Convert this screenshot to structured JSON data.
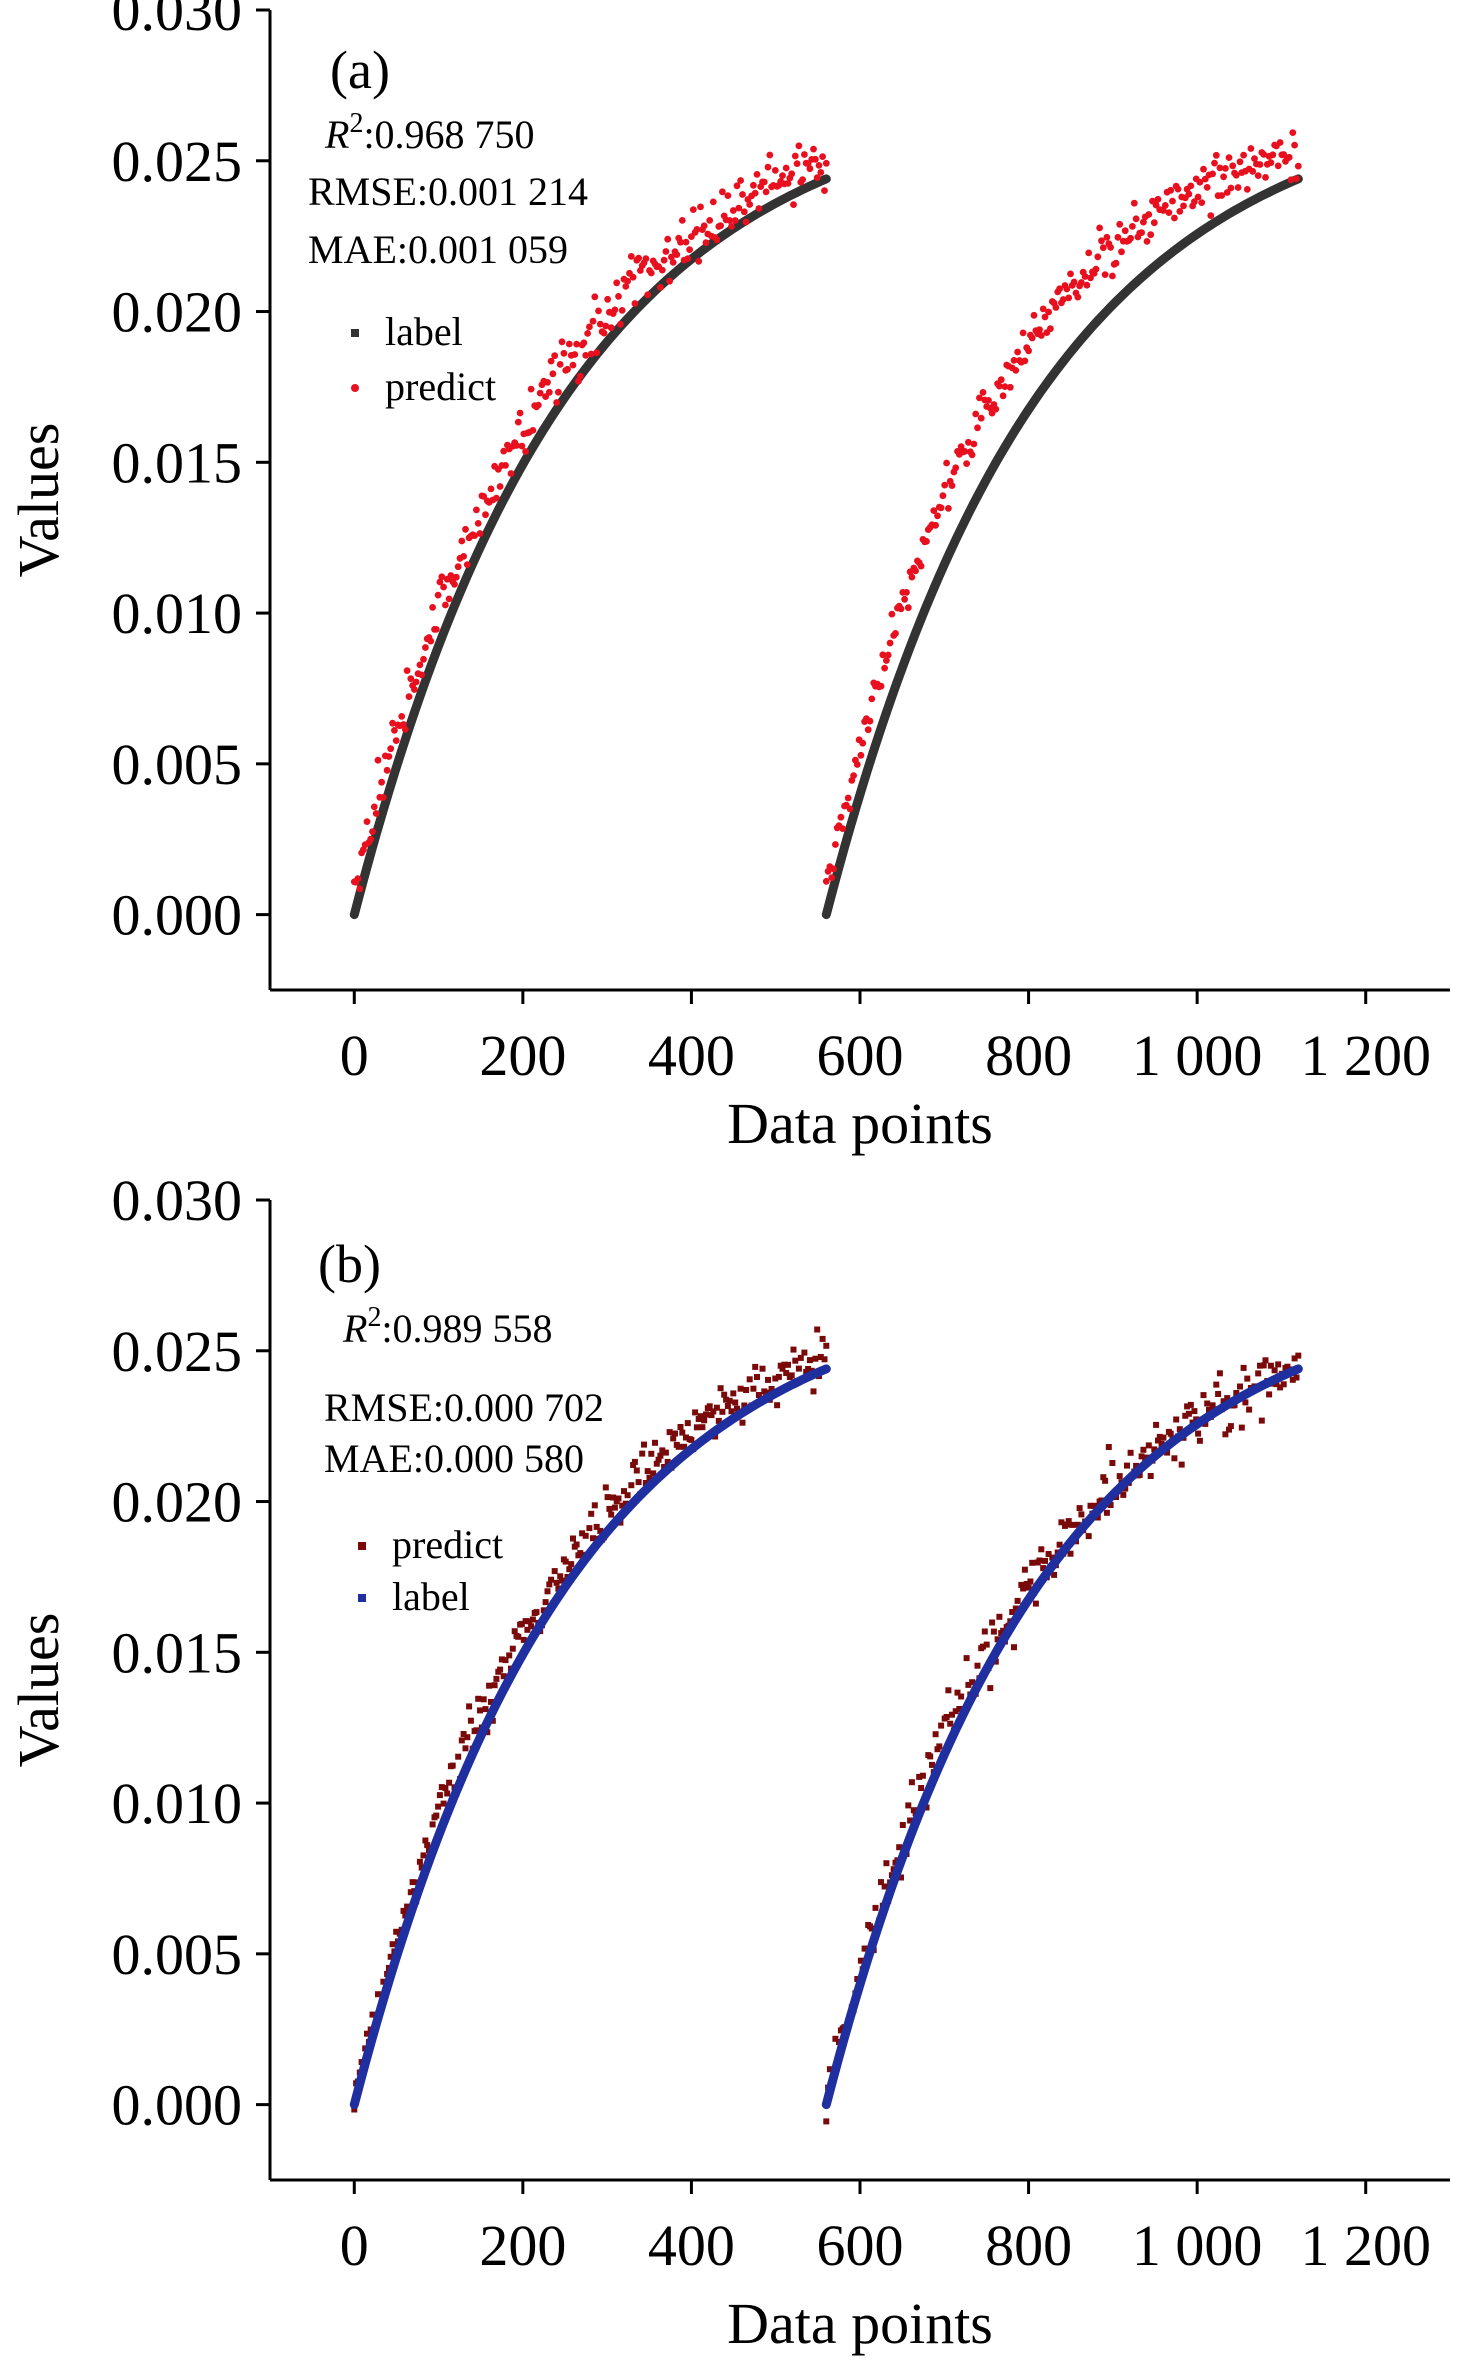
{
  "chart_data": [
    {
      "type": "scatter",
      "panel_label": "(a)",
      "xlabel": "Data points",
      "ylabel": "Values",
      "xlim": [
        -100,
        1300
      ],
      "ylim": [
        -0.0025,
        0.03
      ],
      "xticks": [
        0,
        200,
        400,
        600,
        800,
        1000,
        1200
      ],
      "xtick_labels": [
        "0",
        "200",
        "400",
        "600",
        "800",
        "1 000",
        "1 200"
      ],
      "yticks": [
        0.0,
        0.005,
        0.01,
        0.015,
        0.02,
        0.025,
        0.03
      ],
      "ytick_labels": [
        "0.000",
        "0.005",
        "0.010",
        "0.015",
        "0.020",
        "0.025",
        "0.030"
      ],
      "metrics": [
        {
          "name": "R",
          "sup": "2",
          "value": ":0.968 750"
        },
        {
          "name": "RMSE",
          "value": "RMSE:0.001 214"
        },
        {
          "name": "MAE",
          "value": "MAE:0.001 059"
        }
      ],
      "legend": [
        {
          "label": "label",
          "color": "#333333"
        },
        {
          "label": "predict",
          "color": "#e8101e"
        }
      ],
      "series": [
        {
          "name": "label",
          "kind": "line",
          "color": "#333333",
          "segments": [
            {
              "x_start": 0,
              "x_end": 560,
              "y_start": 0.0,
              "y_end": 0.0244,
              "curvature": 2.2
            },
            {
              "x_start": 560,
              "x_end": 1120,
              "y_start": 0.0,
              "y_end": 0.0244,
              "curvature": 2.2
            }
          ]
        },
        {
          "name": "predict",
          "kind": "scatter",
          "color": "#e8101e",
          "segments": [
            {
              "x_start": 0,
              "x_end": 560,
              "y_start": 0.0008,
              "y_end": 0.025,
              "curvature": 2.4,
              "noise": 0.0005
            },
            {
              "x_start": 560,
              "x_end": 1120,
              "y_start": 0.0008,
              "y_end": 0.0253,
              "curvature": 2.8,
              "noise": 0.0004
            }
          ]
        }
      ]
    },
    {
      "type": "scatter",
      "panel_label": "(b)",
      "xlabel": "Data points",
      "ylabel": "Values",
      "xlim": [
        -100,
        1300
      ],
      "ylim": [
        -0.0025,
        0.03
      ],
      "xticks": [
        0,
        200,
        400,
        600,
        800,
        1000,
        1200
      ],
      "xtick_labels": [
        "0",
        "200",
        "400",
        "600",
        "800",
        "1 000",
        "1 200"
      ],
      "yticks": [
        0.0,
        0.005,
        0.01,
        0.015,
        0.02,
        0.025,
        0.03
      ],
      "ytick_labels": [
        "0.000",
        "0.005",
        "0.010",
        "0.015",
        "0.020",
        "0.025",
        "0.030"
      ],
      "metrics": [
        {
          "name": "R",
          "sup": "2",
          "value": ":0.989 558"
        },
        {
          "name": "RMSE",
          "value": "RMSE:0.000 702"
        },
        {
          "name": "MAE",
          "value": "MAE:0.000 580"
        }
      ],
      "legend": [
        {
          "label": "predict",
          "color": "#7a0a0a"
        },
        {
          "label": "label",
          "color": "#1f2fa0"
        }
      ],
      "series": [
        {
          "name": "predict",
          "kind": "scatter",
          "color": "#7a0a0a",
          "segments": [
            {
              "x_start": 0,
              "x_end": 560,
              "y_start": 0.0004,
              "y_end": 0.0248,
              "curvature": 2.3,
              "noise": 0.00045
            },
            {
              "x_start": 560,
              "x_end": 1120,
              "y_start": 0.0004,
              "y_end": 0.0244,
              "curvature": 2.3,
              "noise": 0.00045
            }
          ]
        },
        {
          "name": "label",
          "kind": "line",
          "color": "#1f2fa0",
          "segments": [
            {
              "x_start": 0,
              "x_end": 560,
              "y_start": 0.0,
              "y_end": 0.0244,
              "curvature": 2.2
            },
            {
              "x_start": 560,
              "x_end": 1120,
              "y_start": 0.0,
              "y_end": 0.0244,
              "curvature": 2.2
            }
          ]
        }
      ]
    }
  ]
}
